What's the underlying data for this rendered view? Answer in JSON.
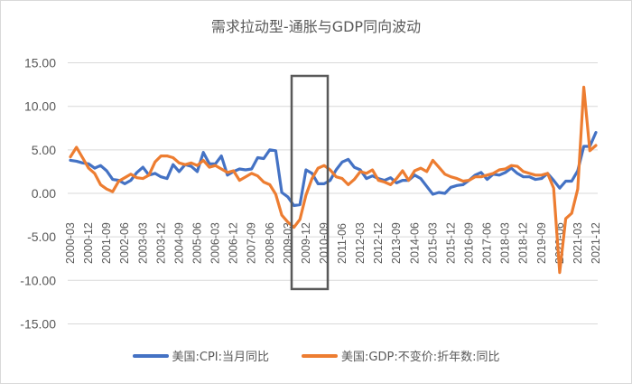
{
  "title": "需求拉动型-通胀与GDP同向波动",
  "legend": [
    {
      "label": "美国:CPI:当月同比",
      "color": "#4472C4"
    },
    {
      "label": "美国:GDP:不变价:折年数:同比",
      "color": "#ED7D31"
    }
  ],
  "chart_data": {
    "type": "line",
    "title": "需求拉动型-通胀与GDP同向波动",
    "xlabel": "",
    "ylabel": "",
    "ylim": [
      -15,
      15
    ],
    "yticks": [
      "15.00",
      "10.00",
      "5.00",
      "0.00",
      "-5.00",
      "-10.00",
      "-15.00"
    ],
    "grid": true,
    "legend_position": "bottom",
    "x_tick_labels": [
      "2000-03",
      "2000-12",
      "2001-09",
      "2002-06",
      "2003-03",
      "2003-12",
      "2004-09",
      "2005-06",
      "2006-03",
      "2006-12",
      "2007-09",
      "2008-06",
      "2009-03",
      "2009-12",
      "2010-09",
      "2011-06",
      "2012-03",
      "2012-12",
      "2013-09",
      "2014-06",
      "2015-03",
      "2015-12",
      "2016-09",
      "2017-06",
      "2018-03",
      "2018-12",
      "2019-09",
      "2020-06",
      "2021-03",
      "2021-12"
    ],
    "x": [
      "2000-03",
      "2000-06",
      "2000-09",
      "2000-12",
      "2001-03",
      "2001-06",
      "2001-09",
      "2001-12",
      "2002-03",
      "2002-06",
      "2002-09",
      "2002-12",
      "2003-03",
      "2003-06",
      "2003-09",
      "2003-12",
      "2004-03",
      "2004-06",
      "2004-09",
      "2004-12",
      "2005-03",
      "2005-06",
      "2005-09",
      "2005-12",
      "2006-03",
      "2006-06",
      "2006-09",
      "2006-12",
      "2007-03",
      "2007-06",
      "2007-09",
      "2007-12",
      "2008-03",
      "2008-06",
      "2008-09",
      "2008-12",
      "2009-03",
      "2009-06",
      "2009-09",
      "2009-12",
      "2010-03",
      "2010-06",
      "2010-09",
      "2010-12",
      "2011-03",
      "2011-06",
      "2011-09",
      "2011-12",
      "2012-03",
      "2012-06",
      "2012-09",
      "2012-12",
      "2013-03",
      "2013-06",
      "2013-09",
      "2013-12",
      "2014-03",
      "2014-06",
      "2014-09",
      "2014-12",
      "2015-03",
      "2015-06",
      "2015-09",
      "2015-12",
      "2016-03",
      "2016-06",
      "2016-09",
      "2016-12",
      "2017-03",
      "2017-06",
      "2017-09",
      "2017-12",
      "2018-03",
      "2018-06",
      "2018-09",
      "2018-12",
      "2019-03",
      "2019-06",
      "2019-09",
      "2019-12",
      "2020-03",
      "2020-06",
      "2020-09",
      "2020-12",
      "2021-03",
      "2021-06",
      "2021-09",
      "2021-12"
    ],
    "series": [
      {
        "name": "美国:CPI:当月同比",
        "color": "#4472C4",
        "values": [
          3.8,
          3.7,
          3.5,
          3.4,
          2.9,
          3.2,
          2.6,
          1.6,
          1.5,
          1.1,
          1.5,
          2.4,
          3.0,
          2.1,
          2.3,
          1.9,
          1.7,
          3.3,
          2.5,
          3.3,
          3.1,
          2.5,
          4.7,
          3.4,
          3.4,
          4.3,
          2.1,
          2.5,
          2.8,
          2.7,
          2.8,
          4.1,
          4.0,
          5.0,
          4.9,
          0.1,
          -0.4,
          -1.4,
          -1.3,
          2.7,
          2.3,
          1.1,
          1.1,
          1.5,
          2.7,
          3.6,
          3.9,
          3.0,
          2.7,
          1.7,
          2.0,
          1.7,
          1.5,
          1.8,
          1.2,
          1.5,
          1.5,
          2.1,
          1.7,
          0.8,
          -0.1,
          0.1,
          0.0,
          0.7,
          0.9,
          1.0,
          1.5,
          2.1,
          2.4,
          1.6,
          2.2,
          2.1,
          2.4,
          2.9,
          2.3,
          1.9,
          1.9,
          1.6,
          1.7,
          2.3,
          1.5,
          0.6,
          1.4,
          1.4,
          2.6,
          5.4,
          5.4,
          7.0
        ]
      },
      {
        "name": "美国:GDP:不变价:折年数:同比",
        "color": "#ED7D31",
        "values": [
          4.2,
          5.3,
          4.1,
          2.9,
          2.3,
          1.0,
          0.5,
          0.2,
          1.4,
          1.8,
          2.2,
          1.8,
          1.7,
          2.1,
          3.6,
          4.3,
          4.3,
          4.1,
          3.5,
          3.3,
          3.5,
          3.2,
          3.8,
          3.0,
          3.2,
          2.8,
          2.4,
          2.6,
          1.5,
          1.9,
          2.3,
          2.0,
          1.3,
          1.0,
          -0.1,
          -2.5,
          -3.3,
          -3.9,
          -3.0,
          -0.2,
          1.7,
          2.9,
          3.2,
          2.7,
          1.9,
          1.7,
          1.0,
          1.6,
          2.5,
          2.3,
          2.7,
          1.5,
          1.3,
          1.0,
          1.7,
          2.6,
          1.5,
          2.6,
          2.9,
          2.5,
          3.8,
          3.0,
          2.2,
          1.9,
          1.7,
          1.4,
          1.5,
          1.9,
          1.9,
          2.1,
          2.3,
          2.7,
          2.8,
          3.2,
          3.1,
          2.5,
          2.3,
          2.1,
          2.1,
          2.3,
          0.6,
          -9.1,
          -2.9,
          -2.3,
          0.5,
          12.2,
          4.9,
          5.5
        ]
      }
    ],
    "annotations": [
      {
        "type": "rectangle",
        "x_range": [
          "2009-03",
          "2010-09"
        ],
        "y_range": [
          -11,
          13.5
        ],
        "color": "#595959"
      }
    ]
  }
}
